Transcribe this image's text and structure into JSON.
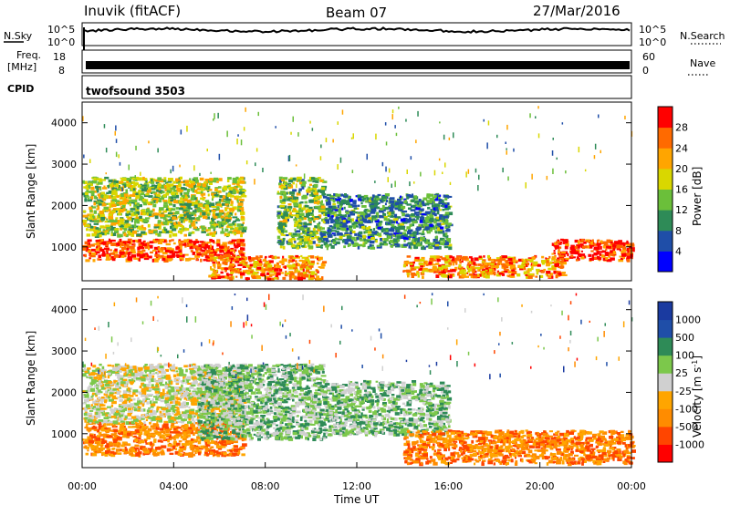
{
  "header": {
    "station": "Inuvik (fitACF)",
    "beam": "Beam 07",
    "date": "27/Mar/2016"
  },
  "strips": {
    "nsky_label": "N.Sky",
    "nsky_ticks": [
      "10^5",
      "10^0"
    ],
    "nsearch_label": "N.Search",
    "nsearch_ticks": [
      "10^5",
      "10^0"
    ],
    "freq_label_1": "Freq.",
    "freq_label_2": "[MHz]",
    "freq_ticks": [
      "18",
      "8"
    ],
    "nave_label": "Nave",
    "nave_ticks": [
      "60",
      "0"
    ],
    "cpid_label": "CPID",
    "cpid_value": "twofsound 3503"
  },
  "panels": {
    "power": {
      "ylabel": "Slant Range [km]",
      "yticks": [
        "4000",
        "3000",
        "2000",
        "1000"
      ],
      "cbar_label": "Power [dB]",
      "cbar_ticks": [
        "28",
        "24",
        "20",
        "16",
        "12",
        "8",
        "4"
      ]
    },
    "velocity": {
      "ylabel": "Slant Range [km]",
      "yticks": [
        "4000",
        "3000",
        "2000",
        "1000"
      ],
      "cbar_label_main": "Velocity",
      "cbar_label_unit": "[m s",
      "cbar_label_exp": "-1",
      "cbar_label_close": "]",
      "cbar_ticks": [
        "1000",
        "500",
        "100",
        "25",
        "-25",
        "-100",
        "-500",
        "-1000"
      ]
    }
  },
  "xaxis": {
    "label": "Time UT",
    "ticks": [
      "00:00",
      "04:00",
      "08:00",
      "12:00",
      "16:00",
      "20:00",
      "00:00"
    ]
  },
  "colors": {
    "power_scale": [
      "#0000ff",
      "#1f4ea8",
      "#2e8b57",
      "#6bbf3a",
      "#d9d700",
      "#ffa500",
      "#ff6a00",
      "#ff0000"
    ],
    "velocity_scale": [
      "#ff0000",
      "#ff4500",
      "#ff8c00",
      "#ffa500",
      "#d0d0d0",
      "#7cc84b",
      "#2e8b57",
      "#1f4ea8",
      "#1a3aa0"
    ]
  },
  "chart_data": [
    {
      "type": "heatmap",
      "title": "Power",
      "xlabel": "Time UT",
      "ylabel": "Slant Range [km]",
      "x_range": [
        "00:00",
        "24:00"
      ],
      "ylim": [
        180,
        4500
      ],
      "colorbar": {
        "label": "Power [dB]",
        "range": [
          0,
          32
        ],
        "ticks": [
          4,
          8,
          12,
          16,
          20,
          24,
          28
        ]
      },
      "features": [
        {
          "region": "near range band",
          "time": [
            "00:00",
            "07:00"
          ],
          "range_km": [
            700,
            1200
          ],
          "power_db": 28
        },
        {
          "region": "upper patches",
          "time": [
            "00:00",
            "07:00"
          ],
          "range_km": [
            1300,
            2700
          ],
          "power_db": 16
        },
        {
          "region": "descending trace",
          "time": [
            "05:30",
            "10:30"
          ],
          "range_km": [
            250,
            800
          ],
          "power_db": 24
        },
        {
          "region": "mid patches",
          "time": [
            "08:30",
            "10:30"
          ],
          "range_km": [
            1000,
            2700
          ],
          "power_db": 14
        },
        {
          "region": "scattered mid",
          "time": [
            "10:30",
            "16:00"
          ],
          "range_km": [
            1000,
            2300
          ],
          "power_db": 10
        },
        {
          "region": "evening band",
          "time": [
            "14:00",
            "21:00"
          ],
          "range_km": [
            300,
            800
          ],
          "power_db": 24
        },
        {
          "region": "late band",
          "time": [
            "20:30",
            "24:00"
          ],
          "range_km": [
            700,
            1200
          ],
          "power_db": 28
        }
      ]
    },
    {
      "type": "heatmap",
      "title": "Velocity",
      "xlabel": "Time UT",
      "ylabel": "Slant Range [km]",
      "x_range": [
        "00:00",
        "24:00"
      ],
      "ylim": [
        180,
        4500
      ],
      "colorbar": {
        "label": "Velocity [m s-1]",
        "range": [
          -1000,
          1000
        ],
        "ticks": [
          1000,
          500,
          100,
          25,
          -25,
          -100,
          -500,
          -1000
        ]
      },
      "features": [
        {
          "region": "near range band",
          "time": [
            "00:00",
            "07:00"
          ],
          "range_km": [
            500,
            1300
          ],
          "velocity_ms": -100
        },
        {
          "region": "upper patches",
          "time": [
            "00:00",
            "07:00"
          ],
          "range_km": [
            1300,
            2700
          ],
          "velocity_ms": 0
        },
        {
          "region": "mid patches",
          "time": [
            "05:00",
            "10:30"
          ],
          "range_km": [
            900,
            2700
          ],
          "velocity_ms": 100
        },
        {
          "region": "scattered mid",
          "time": [
            "10:30",
            "16:00"
          ],
          "range_km": [
            1000,
            2300
          ],
          "velocity_ms": 100
        },
        {
          "region": "evening band",
          "time": [
            "14:00",
            "24:00"
          ],
          "range_km": [
            300,
            1100
          ],
          "velocity_ms": -100
        }
      ]
    }
  ]
}
